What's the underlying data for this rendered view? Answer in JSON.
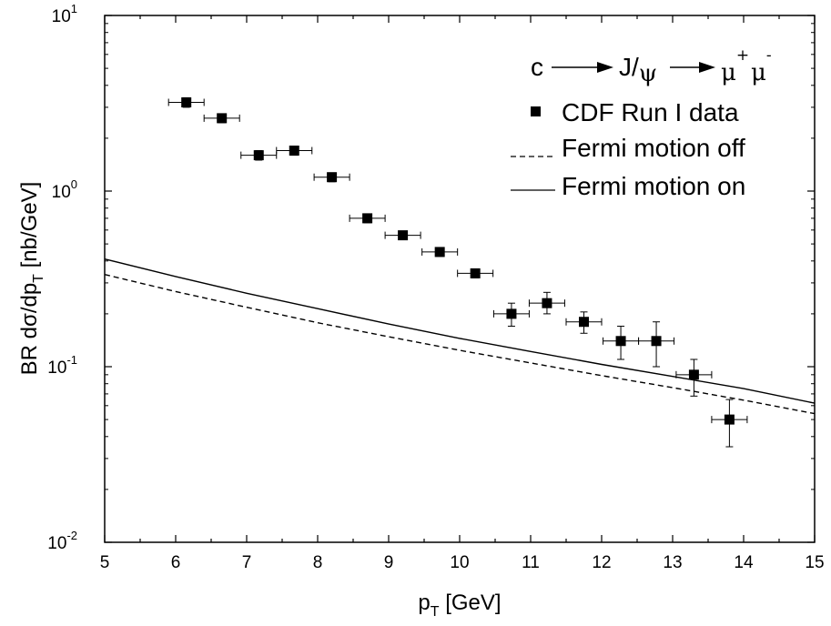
{
  "chart_data": {
    "type": "scatter",
    "title": "",
    "xlabel": {
      "main": "p",
      "sub": "T",
      "rest": " [GeV]"
    },
    "ylabel": {
      "main": "BR dσ/dp",
      "sub": "T",
      "rest": " [nb/GeV]"
    },
    "xlim": [
      5,
      15
    ],
    "ylim": [
      0.01,
      10
    ],
    "yscale": "log",
    "grid": false,
    "x_ticks": [
      "5",
      "6",
      "7",
      "8",
      "9",
      "10",
      "11",
      "12",
      "13",
      "14",
      "15"
    ],
    "y_ticks": [
      {
        "value": 0.01,
        "base": "10",
        "exp": "-2"
      },
      {
        "value": 0.1,
        "base": "10",
        "exp": "-1"
      },
      {
        "value": 1,
        "base": "10",
        "exp": "0"
      },
      {
        "value": 10,
        "base": "10",
        "exp": "1"
      }
    ],
    "annotation": {
      "from": "c",
      "mid": "J/",
      "mid_greek": "ψ",
      "mu": "μ",
      "plus": "+",
      "minus": "-"
    },
    "legend_position": "top-right",
    "series": [
      {
        "name": "CDF Run I data",
        "kind": "points",
        "color": "#000000",
        "points": [
          {
            "x": 6.15,
            "y": 3.2,
            "xerr": 0.25,
            "yerr_low": 3.0,
            "yerr_high": 3.4
          },
          {
            "x": 6.65,
            "y": 2.6,
            "xerr": 0.25,
            "yerr_low": 2.45,
            "yerr_high": 2.75
          },
          {
            "x": 7.17,
            "y": 1.6,
            "xerr": 0.25,
            "yerr_low": 1.5,
            "yerr_high": 1.7
          },
          {
            "x": 7.67,
            "y": 1.7,
            "xerr": 0.25,
            "yerr_low": 1.6,
            "yerr_high": 1.8
          },
          {
            "x": 8.2,
            "y": 1.2,
            "xerr": 0.25,
            "yerr_low": 1.13,
            "yerr_high": 1.27
          },
          {
            "x": 8.7,
            "y": 0.7,
            "xerr": 0.25,
            "yerr_low": 0.66,
            "yerr_high": 0.74
          },
          {
            "x": 9.2,
            "y": 0.56,
            "xerr": 0.25,
            "yerr_low": 0.53,
            "yerr_high": 0.59
          },
          {
            "x": 9.72,
            "y": 0.45,
            "xerr": 0.25,
            "yerr_low": 0.425,
            "yerr_high": 0.475
          },
          {
            "x": 10.22,
            "y": 0.34,
            "xerr": 0.25,
            "yerr_low": 0.32,
            "yerr_high": 0.36
          },
          {
            "x": 10.73,
            "y": 0.2,
            "xerr": 0.25,
            "yerr_low": 0.17,
            "yerr_high": 0.23
          },
          {
            "x": 11.23,
            "y": 0.23,
            "xerr": 0.25,
            "yerr_low": 0.2,
            "yerr_high": 0.265
          },
          {
            "x": 11.75,
            "y": 0.18,
            "xerr": 0.25,
            "yerr_low": 0.155,
            "yerr_high": 0.205
          },
          {
            "x": 12.27,
            "y": 0.14,
            "xerr": 0.25,
            "yerr_low": 0.11,
            "yerr_high": 0.17
          },
          {
            "x": 12.77,
            "y": 0.14,
            "xerr": 0.25,
            "yerr_low": 0.1,
            "yerr_high": 0.18
          },
          {
            "x": 13.3,
            "y": 0.09,
            "xerr": 0.25,
            "yerr_low": 0.068,
            "yerr_high": 0.11
          },
          {
            "x": 13.8,
            "y": 0.05,
            "xerr": 0.25,
            "yerr_low": 0.035,
            "yerr_high": 0.065
          }
        ]
      },
      {
        "name": "Fermi motion off",
        "kind": "line",
        "dash": true,
        "color": "#000000",
        "x": [
          5,
          6,
          7,
          8,
          9,
          10,
          11,
          12,
          13,
          14,
          15
        ],
        "y": [
          0.335,
          0.268,
          0.218,
          0.178,
          0.148,
          0.124,
          0.105,
          0.089,
          0.076,
          0.0645,
          0.054
        ]
      },
      {
        "name": "Fermi motion on",
        "kind": "line",
        "dash": false,
        "color": "#000000",
        "x": [
          5,
          6,
          7,
          8,
          9,
          10,
          11,
          12,
          13,
          14,
          15
        ],
        "y": [
          0.41,
          0.326,
          0.262,
          0.214,
          0.175,
          0.145,
          0.122,
          0.103,
          0.088,
          0.075,
          0.062
        ]
      }
    ]
  }
}
